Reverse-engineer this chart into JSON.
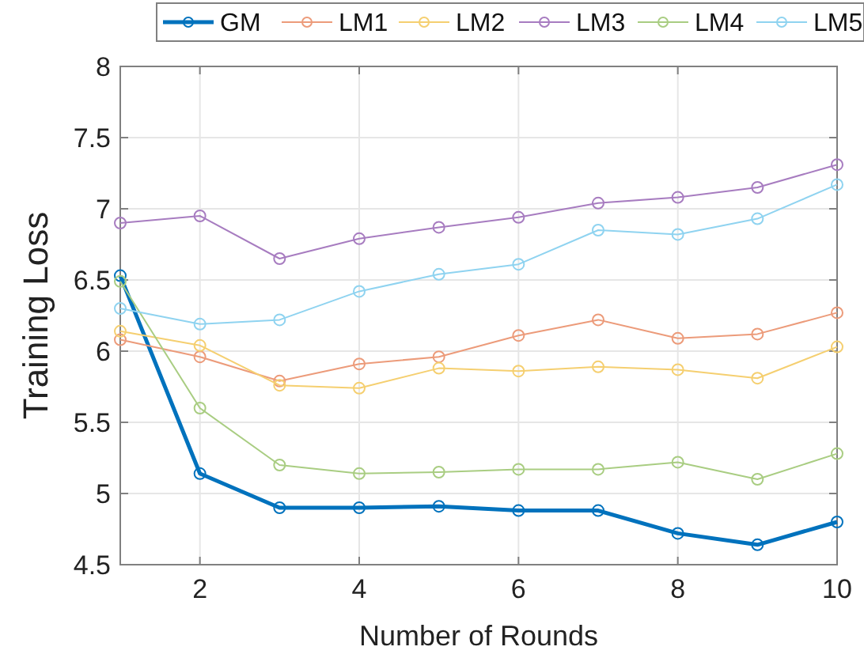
{
  "chart_data": {
    "type": "line",
    "xlabel": "Number of Rounds",
    "ylabel": "Training Loss",
    "x": [
      1,
      2,
      3,
      4,
      5,
      6,
      7,
      8,
      9,
      10
    ],
    "xlim": [
      1,
      10
    ],
    "xticks": [
      2,
      4,
      6,
      8,
      10
    ],
    "ylim": [
      4.5,
      8
    ],
    "yticks": [
      4.5,
      5,
      5.5,
      6,
      6.5,
      7,
      7.5,
      8
    ],
    "grid": true,
    "legend": "top",
    "marker": "circle",
    "line_style": "solid",
    "series": [
      {
        "name": "GM",
        "color": "#0072bd",
        "values": [
          6.53,
          5.14,
          4.9,
          4.9,
          4.91,
          4.88,
          4.88,
          4.72,
          4.64,
          4.8
        ]
      },
      {
        "name": "LM1",
        "color": "#ec9b7a",
        "values": [
          6.08,
          5.96,
          5.79,
          5.91,
          5.96,
          6.11,
          6.22,
          6.09,
          6.12,
          6.27
        ]
      },
      {
        "name": "LM2",
        "color": "#f5cf70",
        "values": [
          6.14,
          6.04,
          5.76,
          5.74,
          5.88,
          5.86,
          5.89,
          5.87,
          5.81,
          6.03
        ]
      },
      {
        "name": "LM3",
        "color": "#a77cc0",
        "values": [
          6.9,
          6.95,
          6.65,
          6.79,
          6.87,
          6.94,
          7.04,
          7.08,
          7.15,
          7.31
        ]
      },
      {
        "name": "LM4",
        "color": "#a9cd82",
        "values": [
          6.49,
          5.6,
          5.2,
          5.14,
          5.15,
          5.17,
          5.17,
          5.22,
          5.1,
          5.28
        ]
      },
      {
        "name": "LM5",
        "color": "#8fd3f0",
        "values": [
          6.3,
          6.19,
          6.22,
          6.42,
          6.54,
          6.61,
          6.85,
          6.82,
          6.93,
          7.17
        ]
      }
    ]
  }
}
